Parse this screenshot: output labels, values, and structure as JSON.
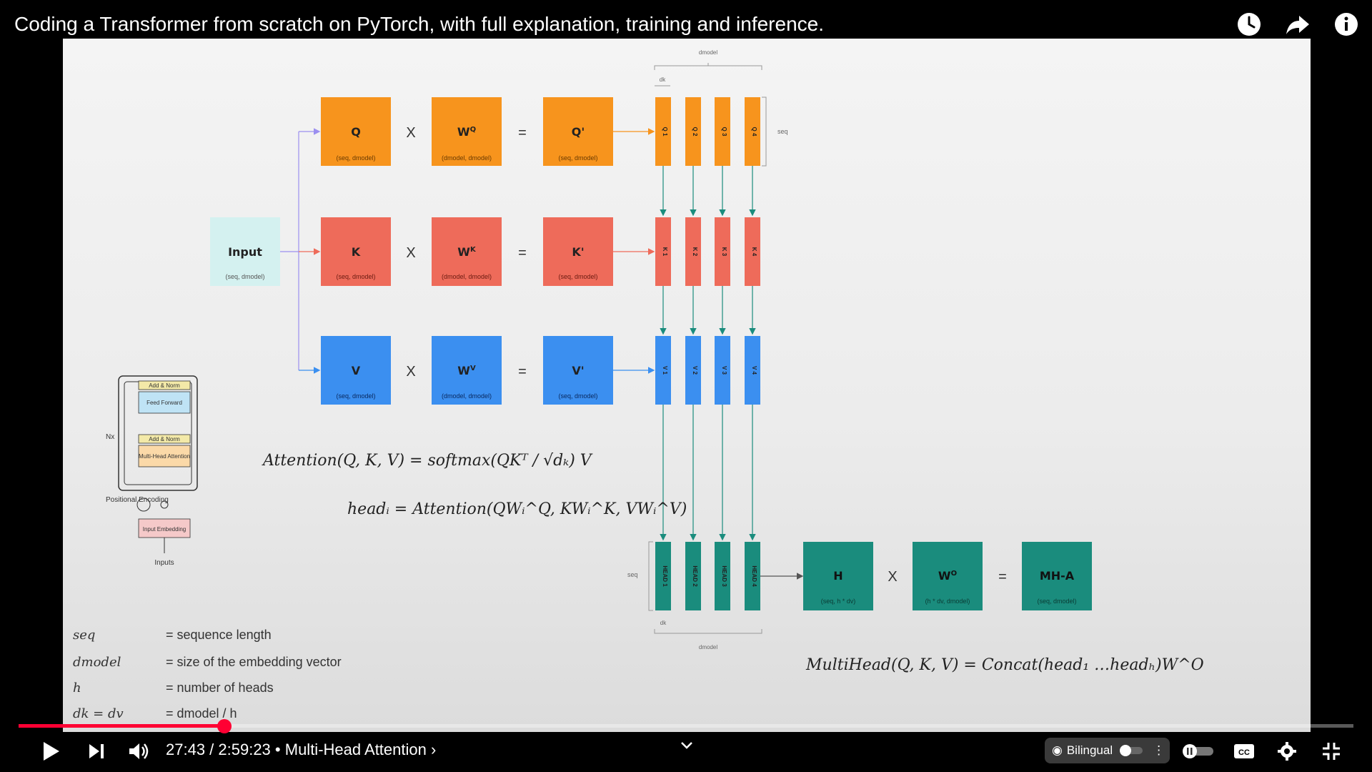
{
  "video": {
    "title": "Coding a Transformer from scratch on PyTorch, with full explanation, training and inference."
  },
  "top_icons": [
    "watch-later-icon",
    "share-icon",
    "info-icon"
  ],
  "slide": {
    "rows": {
      "q": {
        "input": "Q",
        "weight": "W",
        "weight_sup": "Q",
        "result": "Q'",
        "heads": [
          "Q 1",
          "Q 2",
          "Q 3",
          "Q 4"
        ]
      },
      "k": {
        "input": "K",
        "weight": "W",
        "weight_sup": "K",
        "result": "K'",
        "heads": [
          "K 1",
          "K 2",
          "K 3",
          "K 4"
        ]
      },
      "v": {
        "input": "V",
        "weight": "W",
        "weight_sup": "V",
        "result": "V'",
        "heads": [
          "V 1",
          "V 2",
          "V 3",
          "V 4"
        ]
      }
    },
    "input_box": {
      "label": "Input"
    },
    "seq_dmodel": "(seq, dmodel)",
    "dmodel_dmodel": "(dmodel, dmodel)",
    "times": "X",
    "equals": "=",
    "seq": "seq",
    "dmodel": "dmodel",
    "dk": "dk",
    "head_labels": [
      "HEAD 1",
      "HEAD 2",
      "HEAD 3",
      "HEAD 4"
    ],
    "h_box": {
      "label": "H",
      "sub": "(seq, h * dv)"
    },
    "wo_box": {
      "label": "W",
      "label_sup": "O",
      "sub": "(h * dv, dmodel)"
    },
    "mha_box": {
      "label": "MH-A",
      "sub": "(seq, dmodel)"
    },
    "formula_attention": "Attention(Q, K, V) = softmax(QKᵀ / √dₖ) V",
    "formula_head": "headᵢ = Attention(QWᵢ^Q, KWᵢ^K, VWᵢ^V)",
    "formula_multihead": "MultiHead(Q, K, V) = Concat(head₁ …headₕ)W^O",
    "mini_diagram": {
      "add_norm": "Add & Norm",
      "feed_forward": "Feed Forward",
      "mha": "Multi-Head Attention",
      "nx": "Nx",
      "pos_enc": "Positional Encoding",
      "input_emb": "Input Embedding",
      "inputs": "Inputs"
    },
    "legend": [
      {
        "key": "seq",
        "value": "= sequence length"
      },
      {
        "key": "dmodel",
        "value": "= size of the embedding vector"
      },
      {
        "key": "h",
        "value": "= number of heads"
      },
      {
        "key": "dk = dv",
        "value": "= dmodel / h"
      }
    ],
    "colors": {
      "orange": "#f7941d",
      "red": "#ee6b5a",
      "blue": "#3b8ff0",
      "teal": "#1a8c7d",
      "input": "#d4f1f0"
    }
  },
  "player": {
    "time": "27:43 / 2:59:23",
    "chapter": "Multi-Head Attention",
    "bilingual_label": "Bilingual",
    "progress_fraction": 0.154
  }
}
